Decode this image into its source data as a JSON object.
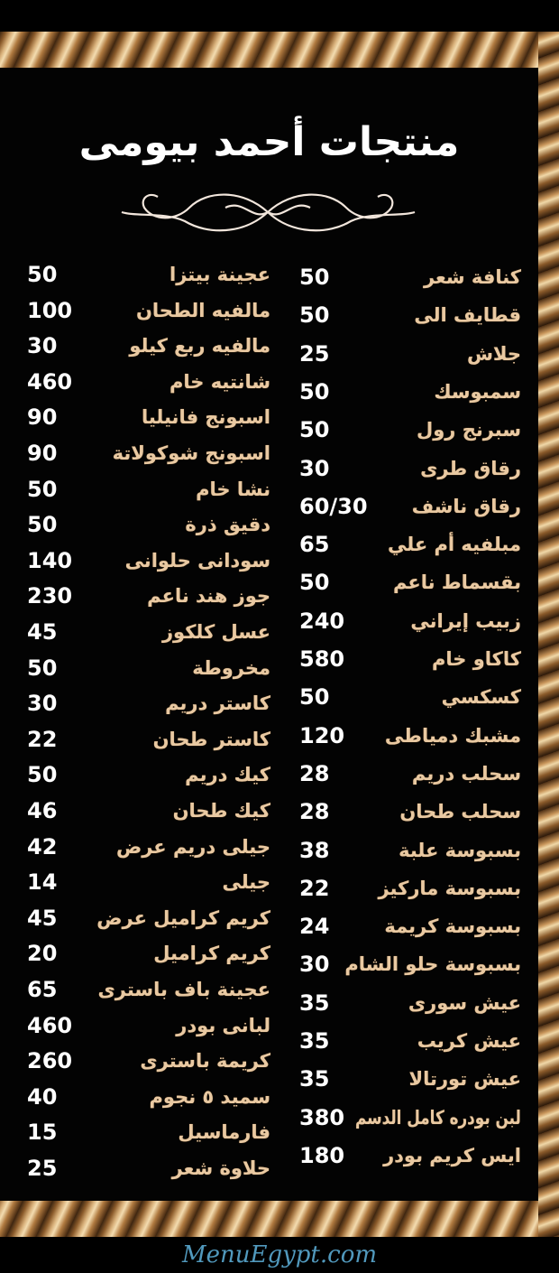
{
  "title": "منتجات أحمد بيومى",
  "watermark": "MenuEgypt.com",
  "colors": {
    "background": "#030303",
    "item_name": "#e9c9a2",
    "price": "#ffffff",
    "frame": "#c8955a"
  },
  "right_column": [
    {
      "name": "كنافة شعر",
      "price": "50"
    },
    {
      "name": "قطايف الى",
      "price": "50"
    },
    {
      "name": "جلاش",
      "price": "25"
    },
    {
      "name": "سمبوسك",
      "price": "50"
    },
    {
      "name": "سبرنج رول",
      "price": "50"
    },
    {
      "name": "رقاق طرى",
      "price": "30"
    },
    {
      "name": "رقاق ناشف",
      "price": "60/30"
    },
    {
      "name": "مبلفيه أم علي",
      "price": "65"
    },
    {
      "name": "بقسماط ناعم",
      "price": "50"
    },
    {
      "name": "زبيب إيراني",
      "price": "240"
    },
    {
      "name": "كاكاو خام",
      "price": "580"
    },
    {
      "name": "كسكسي",
      "price": "50"
    },
    {
      "name": "مشبك دمياطى",
      "price": "120"
    },
    {
      "name": "سحلب دريم",
      "price": "28"
    },
    {
      "name": "سحلب طحان",
      "price": "28"
    },
    {
      "name": "بسبوسة علبة",
      "price": "38"
    },
    {
      "name": "بسبوسة ماركيز",
      "price": "22"
    },
    {
      "name": "بسبوسة كريمة",
      "price": "24"
    },
    {
      "name": "بسبوسة حلو الشام",
      "price": "30"
    },
    {
      "name": "عيش سورى",
      "price": "35"
    },
    {
      "name": "عيش كريب",
      "price": "35"
    },
    {
      "name": "عيش تورتالا",
      "price": "35"
    },
    {
      "name": "لبن بودره كامل الدسم",
      "price": "380"
    },
    {
      "name": "ايس كريم بودر",
      "price": "180"
    }
  ],
  "left_column": [
    {
      "name": "عجينة بيتزا",
      "price": "50"
    },
    {
      "name": "مالفيه الطحان",
      "price": "100"
    },
    {
      "name": "مالفيه ربع كيلو",
      "price": "30"
    },
    {
      "name": "شانتيه خام",
      "price": "460"
    },
    {
      "name": "اسبونج فانيليا",
      "price": "90"
    },
    {
      "name": "اسبونج شوكولاتة",
      "price": "90"
    },
    {
      "name": "نشا خام",
      "price": "50"
    },
    {
      "name": "دقيق ذرة",
      "price": "50"
    },
    {
      "name": "سودانى حلوانى",
      "price": "140"
    },
    {
      "name": "جوز هند ناعم",
      "price": "230"
    },
    {
      "name": "عسل كلكوز",
      "price": "45"
    },
    {
      "name": "مخروطة",
      "price": "50"
    },
    {
      "name": "كاستر دريم",
      "price": "30"
    },
    {
      "name": "كاستر طحان",
      "price": "22"
    },
    {
      "name": "كيك دريم",
      "price": "50"
    },
    {
      "name": "كيك طحان",
      "price": "46"
    },
    {
      "name": "جيلى دريم عرض",
      "price": "42"
    },
    {
      "name": "جيلى",
      "price": "14"
    },
    {
      "name": "كريم كراميل عرض",
      "price": "45"
    },
    {
      "name": "كريم كراميل",
      "price": "20"
    },
    {
      "name": "عجينة باف باسترى",
      "price": "65"
    },
    {
      "name": "لبانى بودر",
      "price": "460"
    },
    {
      "name": "كريمة باسترى",
      "price": "260"
    },
    {
      "name": "سميد ٥ نجوم",
      "price": "40"
    },
    {
      "name": "فارماسيل",
      "price": "15"
    },
    {
      "name": "حلاوة شعر",
      "price": "25"
    }
  ]
}
